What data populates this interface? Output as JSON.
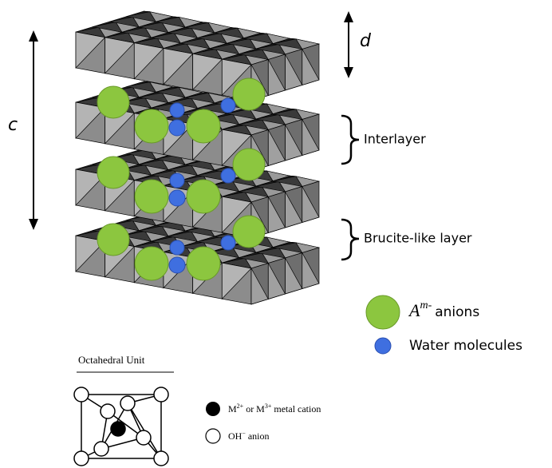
{
  "labels": {
    "d": "d",
    "c": "c",
    "interlayer": "Interlayer",
    "brucite_layer": "Brucite-like layer"
  },
  "legend": {
    "anion": {
      "symbol": "A",
      "superscript": "m-",
      "label": "anions"
    },
    "water": "Water molecules"
  },
  "octahedral_unit": {
    "title": "Octahedral Unit",
    "cation": [
      "M",
      "2+",
      "or M",
      "3+",
      "metal cation"
    ],
    "anion": [
      "OH",
      "−",
      "anion"
    ]
  }
}
